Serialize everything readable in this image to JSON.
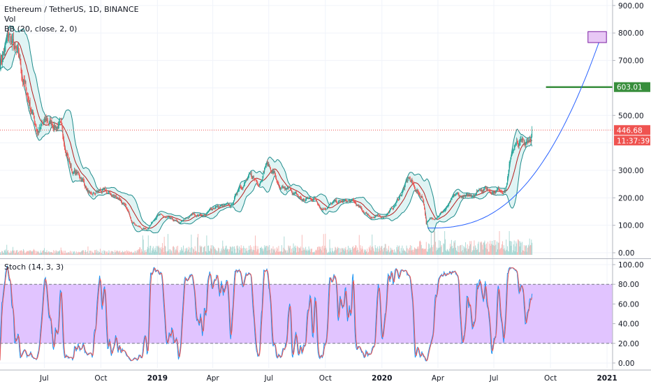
{
  "legend": {
    "symbol": "Ethereum / TetherUS, 1D, BINANCE",
    "volume": "Vol",
    "bb": "BB (20, close, 2, 0)",
    "stoch": "Stoch (14, 3, 3)"
  },
  "colors": {
    "up": "#26a69a",
    "down": "#ef5350",
    "bb_band": "#1e8b8b",
    "bb_fill": "#e0f4f4",
    "bb_basis": "#b71c1c",
    "curve": "#2962ff",
    "target_line": "#388e3c",
    "stoch_k": "#2196f3",
    "stoch_d": "#ef5350",
    "stoch_fill": "#e1c4ff",
    "box_fill": "#e8c8f5",
    "box_border": "#7b1fa2",
    "axis_text": "#131722",
    "grid": "#f0f3fa"
  },
  "chart_data": {
    "type": "candlestick",
    "symbol": "ETHUSDT",
    "exchange": "BINANCE",
    "interval": "1D",
    "price_axis": {
      "ticks": [
        0,
        100,
        200,
        300,
        400,
        500,
        600,
        700,
        800,
        900
      ],
      "tick_labels": [
        "0.00",
        "100.00",
        "200.00",
        "300.00",
        "",
        "500.00",
        "",
        "700.00",
        "800.00",
        "900.00"
      ],
      "ylim": [
        -5,
        920
      ]
    },
    "time_axis": {
      "labels": [
        "Jul",
        "Oct",
        "2019",
        "Apr",
        "Jul",
        "Oct",
        "2020",
        "Apr",
        "Jul",
        "Oct",
        "2021"
      ],
      "dates": [
        "2018-07-01",
        "2018-10-01",
        "2019-01-01",
        "2019-04-01",
        "2019-07-01",
        "2019-10-01",
        "2020-01-01",
        "2020-04-01",
        "2020-07-01",
        "2020-10-01",
        "2021-01-01"
      ],
      "range": [
        "2018-04-20",
        "2021-01-10"
      ]
    },
    "price_path": [
      [
        "2018-04-20",
        700
      ],
      [
        "2018-05-05",
        780
      ],
      [
        "2018-05-20",
        690
      ],
      [
        "2018-06-05",
        560
      ],
      [
        "2018-06-20",
        450
      ],
      [
        "2018-07-05",
        470
      ],
      [
        "2018-07-25",
        470
      ],
      [
        "2018-08-15",
        300
      ],
      [
        "2018-09-01",
        270
      ],
      [
        "2018-09-15",
        200
      ],
      [
        "2018-09-30",
        225
      ],
      [
        "2018-10-15",
        210
      ],
      [
        "2018-11-01",
        200
      ],
      [
        "2018-11-20",
        120
      ],
      [
        "2018-12-05",
        90
      ],
      [
        "2018-12-15",
        85
      ],
      [
        "2018-12-31",
        140
      ],
      [
        "2019-01-15",
        125
      ],
      [
        "2019-02-07",
        105
      ],
      [
        "2019-02-28",
        140
      ],
      [
        "2019-03-20",
        138
      ],
      [
        "2019-04-05",
        170
      ],
      [
        "2019-05-01",
        165
      ],
      [
        "2019-05-15",
        250
      ],
      [
        "2019-05-30",
        270
      ],
      [
        "2019-06-15",
        260
      ],
      [
        "2019-06-26",
        330
      ],
      [
        "2019-07-10",
        290
      ],
      [
        "2019-07-20",
        220
      ],
      [
        "2019-08-05",
        225
      ],
      [
        "2019-08-25",
        190
      ],
      [
        "2019-09-15",
        200
      ],
      [
        "2019-09-25",
        165
      ],
      [
        "2019-10-15",
        180
      ],
      [
        "2019-10-28",
        185
      ],
      [
        "2019-11-15",
        185
      ],
      [
        "2019-12-01",
        150
      ],
      [
        "2019-12-18",
        130
      ],
      [
        "2020-01-01",
        130
      ],
      [
        "2020-01-20",
        165
      ],
      [
        "2020-02-14",
        270
      ],
      [
        "2020-02-25",
        230
      ],
      [
        "2020-03-08",
        200
      ],
      [
        "2020-03-13",
        110
      ],
      [
        "2020-03-30",
        135
      ],
      [
        "2020-04-15",
        160
      ],
      [
        "2020-04-30",
        205
      ],
      [
        "2020-05-20",
        200
      ],
      [
        "2020-06-10",
        240
      ],
      [
        "2020-06-30",
        228
      ],
      [
        "2020-07-20",
        237
      ],
      [
        "2020-08-01",
        385
      ],
      [
        "2020-08-10",
        390
      ],
      [
        "2020-08-20",
        400
      ],
      [
        "2020-08-30",
        440
      ],
      [
        "2020-09-01",
        446.68
      ]
    ],
    "last_price": 446.68,
    "last_price_label": "446.68",
    "countdown_label": "11:37:39",
    "bollinger_bands": {
      "length": 20,
      "source": "close",
      "stdev": 2,
      "offset": 0
    },
    "target_level": {
      "value": 603.01,
      "label": "603.01"
    },
    "target_box": {
      "start": "2020-12-01",
      "end": "2020-12-31",
      "low": 765,
      "high": 805
    },
    "projection_curve": {
      "from": [
        "2020-03-15",
        90
      ],
      "to": [
        "2020-12-21",
        780
      ],
      "shape": "parabolic"
    },
    "stochastic": {
      "k": 14,
      "d": 3,
      "smooth": 3,
      "upper_band": 80,
      "lower_band": 20,
      "ylim": [
        -5,
        100
      ],
      "ticks": [
        0,
        20,
        40,
        60,
        80,
        100
      ],
      "tick_labels": [
        "0.00",
        "20.00",
        "40.00",
        "60.00",
        "80.00",
        "100.00"
      ]
    }
  }
}
